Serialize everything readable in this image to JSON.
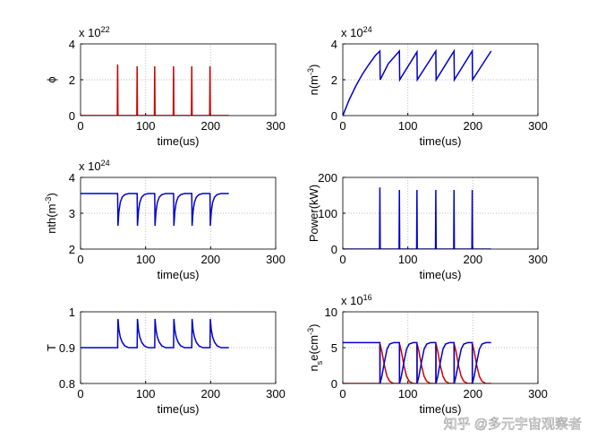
{
  "chart_data": [
    {
      "type": "line",
      "ylabel": [
        {
          "text": "ϕ"
        }
      ],
      "xlabel": "time(us)",
      "y_multiplier": {
        "base": "x 10",
        "exponent": "22"
      },
      "xlim": [
        0,
        300
      ],
      "xticks": [
        0,
        100,
        200,
        300
      ],
      "ylim": [
        0,
        4
      ],
      "yticks": [
        0,
        2,
        4
      ],
      "grid": true,
      "series": [
        {
          "color": "#cc0000",
          "x": [
            0,
            56.5,
            57,
            57.5,
            86.5,
            87,
            87.5,
            113.5,
            114,
            114.5,
            142.5,
            143,
            143.5,
            170.5,
            171,
            171.5,
            198.5,
            199,
            199.5,
            228
          ],
          "values": [
            0,
            0,
            2.85,
            0,
            0,
            2.75,
            0,
            0,
            2.75,
            0,
            0,
            2.75,
            0,
            0,
            2.75,
            0,
            0,
            2.75,
            0,
            0
          ]
        }
      ]
    },
    {
      "type": "line",
      "ylabel": [
        {
          "text": "n(m"
        },
        {
          "text": "-3",
          "script": "sup"
        },
        {
          "text": ")"
        }
      ],
      "xlabel": "time(us)",
      "y_multiplier": {
        "base": "x 10",
        "exponent": "24"
      },
      "xlim": [
        0,
        300
      ],
      "xticks": [
        0,
        100,
        200,
        300
      ],
      "ylim": [
        0,
        4
      ],
      "yticks": [
        0,
        2,
        4
      ],
      "grid": true,
      "series": [
        {
          "color": "#0000cc",
          "x": [
            0,
            10,
            20,
            30,
            40,
            50,
            57,
            57.5,
            70,
            87,
            87.5,
            114,
            114.5,
            143,
            143.5,
            171,
            171.5,
            199,
            199.5,
            228
          ],
          "values": [
            0,
            0.9,
            1.65,
            2.3,
            2.85,
            3.35,
            3.6,
            2.0,
            2.9,
            3.6,
            2.0,
            3.55,
            2.0,
            3.6,
            2.0,
            3.6,
            2.0,
            3.6,
            2.0,
            3.6
          ]
        }
      ]
    },
    {
      "type": "line",
      "ylabel": [
        {
          "text": "nth(m"
        },
        {
          "text": "-3",
          "script": "sup"
        },
        {
          "text": ")"
        }
      ],
      "xlabel": "time(us)",
      "y_multiplier": {
        "base": "x 10",
        "exponent": "24"
      },
      "xlim": [
        0,
        300
      ],
      "xticks": [
        0,
        100,
        200,
        300
      ],
      "ylim": [
        2,
        4
      ],
      "yticks": [
        2,
        3,
        4
      ],
      "grid": true,
      "series": [
        {
          "color": "#0000cc",
          "x": [
            0,
            57,
            57.5,
            59,
            61,
            64,
            68,
            74,
            87,
            87.5,
            89,
            91,
            94,
            98,
            104,
            114,
            114.5,
            116,
            118,
            121,
            125,
            131,
            143,
            143.5,
            145,
            147,
            150,
            154,
            160,
            171,
            171.5,
            173,
            175,
            178,
            182,
            188,
            199,
            199.5,
            201,
            203,
            206,
            210,
            216,
            228
          ],
          "values": [
            3.55,
            3.55,
            2.65,
            3.05,
            3.3,
            3.45,
            3.52,
            3.55,
            3.55,
            2.65,
            3.05,
            3.3,
            3.45,
            3.52,
            3.55,
            3.55,
            2.65,
            3.05,
            3.3,
            3.45,
            3.52,
            3.55,
            3.55,
            2.65,
            3.05,
            3.3,
            3.45,
            3.52,
            3.55,
            3.55,
            2.65,
            3.05,
            3.3,
            3.45,
            3.52,
            3.55,
            3.55,
            2.65,
            3.05,
            3.3,
            3.45,
            3.52,
            3.55,
            3.55
          ]
        }
      ]
    },
    {
      "type": "line",
      "ylabel": [
        {
          "text": "Power(kW)"
        }
      ],
      "xlabel": "time(us)",
      "xlim": [
        0,
        300
      ],
      "xticks": [
        0,
        100,
        200,
        300
      ],
      "ylim": [
        0,
        200
      ],
      "yticks": [
        0,
        100,
        200
      ],
      "grid": true,
      "series": [
        {
          "color": "#0000cc",
          "x": [
            0,
            56.5,
            57,
            57.5,
            86.5,
            87,
            87.5,
            113.5,
            114,
            114.5,
            142.5,
            143,
            143.5,
            170.5,
            171,
            171.5,
            198.5,
            199,
            199.5,
            228
          ],
          "values": [
            0,
            0,
            172,
            0,
            0,
            165,
            0,
            0,
            165,
            0,
            0,
            165,
            0,
            0,
            165,
            0,
            0,
            165,
            0,
            0
          ]
        }
      ]
    },
    {
      "type": "line",
      "ylabel": [
        {
          "text": "T"
        }
      ],
      "xlabel": "time(us)",
      "xlim": [
        0,
        300
      ],
      "xticks": [
        0,
        100,
        200,
        300
      ],
      "ylim": [
        0.8,
        1
      ],
      "yticks": [
        0.8,
        0.9,
        1
      ],
      "grid": true,
      "series": [
        {
          "color": "#0000cc",
          "x": [
            0,
            57,
            57.5,
            59,
            61,
            64,
            68,
            74,
            87,
            87.5,
            89,
            91,
            94,
            98,
            104,
            114,
            114.5,
            116,
            118,
            121,
            125,
            131,
            143,
            143.5,
            145,
            147,
            150,
            154,
            160,
            171,
            171.5,
            173,
            175,
            178,
            182,
            188,
            199,
            199.5,
            201,
            203,
            206,
            210,
            216,
            228
          ],
          "values": [
            0.9,
            0.9,
            0.98,
            0.95,
            0.93,
            0.915,
            0.905,
            0.9,
            0.9,
            0.98,
            0.95,
            0.93,
            0.915,
            0.905,
            0.9,
            0.9,
            0.98,
            0.95,
            0.93,
            0.915,
            0.905,
            0.9,
            0.9,
            0.98,
            0.95,
            0.93,
            0.915,
            0.905,
            0.9,
            0.9,
            0.98,
            0.95,
            0.93,
            0.915,
            0.905,
            0.9,
            0.9,
            0.98,
            0.95,
            0.93,
            0.915,
            0.905,
            0.9,
            0.9
          ]
        }
      ]
    },
    {
      "type": "line",
      "ylabel": [
        {
          "text": "n"
        },
        {
          "text": "s",
          "script": "sub"
        },
        {
          "text": "e(cm"
        },
        {
          "text": "-3",
          "script": "sup"
        },
        {
          "text": ")"
        }
      ],
      "xlabel": "time(us)",
      "y_multiplier": {
        "base": "x 10",
        "exponent": "16"
      },
      "xlim": [
        0,
        300
      ],
      "xticks": [
        0,
        100,
        200,
        300
      ],
      "ylim": [
        0,
        10
      ],
      "yticks": [
        0,
        5,
        10
      ],
      "grid": true,
      "series": [
        {
          "color": "#cc0000",
          "x": [
            0,
            57,
            57.3,
            60,
            64,
            68,
            72,
            78,
            87,
            87.3,
            90,
            94,
            98,
            102,
            108,
            114,
            114.3,
            117,
            121,
            125,
            129,
            135,
            143,
            143.3,
            146,
            150,
            154,
            158,
            164,
            171,
            171.3,
            174,
            178,
            182,
            186,
            192,
            199,
            199.3,
            202,
            206,
            210,
            214,
            220,
            228
          ],
          "values": [
            0,
            0,
            5.5,
            4.5,
            2.5,
            1,
            0.3,
            0,
            0,
            5.5,
            4.5,
            2.5,
            1,
            0.3,
            0,
            0,
            5.5,
            4.5,
            2.5,
            1,
            0.3,
            0,
            0,
            5.5,
            4.5,
            2.5,
            1,
            0.3,
            0,
            0,
            5.5,
            4.5,
            2.5,
            1,
            0.3,
            0,
            0,
            5.5,
            4.5,
            2.5,
            1,
            0.3,
            0,
            0
          ]
        },
        {
          "color": "#0000cc",
          "x": [
            0,
            57,
            57.3,
            60,
            64,
            68,
            72,
            78,
            87,
            87.3,
            90,
            94,
            98,
            102,
            108,
            114,
            114.3,
            117,
            121,
            125,
            129,
            135,
            143,
            143.3,
            146,
            150,
            154,
            158,
            164,
            171,
            171.3,
            174,
            178,
            182,
            186,
            192,
            199,
            199.3,
            202,
            206,
            210,
            214,
            220,
            228
          ],
          "values": [
            5.7,
            5.7,
            0,
            1,
            3,
            4.8,
            5.5,
            5.7,
            5.7,
            0,
            1,
            3,
            4.8,
            5.5,
            5.7,
            5.7,
            0,
            1,
            3,
            4.8,
            5.5,
            5.7,
            5.7,
            0,
            1,
            3,
            4.8,
            5.5,
            5.7,
            5.7,
            0,
            1,
            3,
            4.8,
            5.5,
            5.7,
            5.7,
            0,
            1,
            3,
            4.8,
            5.5,
            5.7,
            5.7
          ]
        }
      ]
    }
  ],
  "watermark": "知乎 @多元宇宙观察者"
}
